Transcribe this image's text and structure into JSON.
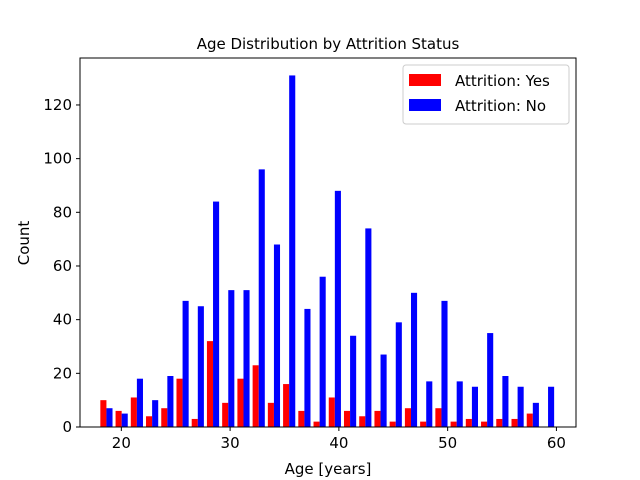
{
  "chart_data": {
    "type": "bar",
    "title": "Age Distribution by Attrition Status",
    "xlabel": "Age [years]",
    "ylabel": "Count",
    "xlim": [
      16.2,
      61.8
    ],
    "ylim": [
      0,
      137.5
    ],
    "x_ticks": [
      20,
      30,
      40,
      50,
      60
    ],
    "y_ticks": [
      0,
      20,
      40,
      60,
      80,
      100,
      120
    ],
    "legend_position": "top-right",
    "grid": false,
    "bin_width": 1.4,
    "series": [
      {
        "name": "Attrition: Yes",
        "color": "#ff0000",
        "x": [
          18.35,
          19.75,
          21.15,
          22.55,
          23.95,
          25.35,
          26.75,
          28.15,
          29.55,
          30.95,
          32.35,
          33.75,
          35.15,
          36.55,
          37.95,
          39.35,
          40.75,
          42.15,
          43.55,
          44.95,
          46.35,
          47.75,
          49.15,
          50.55,
          51.95,
          53.35,
          54.75,
          56.15,
          57.55
        ],
        "values": [
          10,
          6,
          11,
          4,
          7,
          18,
          3,
          32,
          9,
          18,
          23,
          9,
          16,
          6,
          2,
          11,
          6,
          4,
          6,
          2,
          7,
          2,
          7,
          2,
          3,
          2,
          3,
          3,
          5
        ]
      },
      {
        "name": "Attrition: No",
        "color": "#0000ff",
        "x": [
          18.91,
          20.31,
          21.71,
          23.11,
          24.51,
          25.91,
          27.31,
          28.71,
          30.11,
          31.51,
          32.91,
          34.31,
          35.71,
          37.11,
          38.51,
          39.91,
          41.31,
          42.71,
          44.11,
          45.51,
          46.91,
          48.31,
          49.71,
          51.11,
          52.51,
          53.91,
          55.31,
          56.71,
          58.11,
          59.51
        ],
        "values": [
          7,
          5,
          18,
          10,
          19,
          47,
          45,
          84,
          51,
          51,
          96,
          68,
          131,
          44,
          56,
          88,
          34,
          74,
          27,
          39,
          50,
          17,
          47,
          17,
          15,
          35,
          19,
          15,
          9,
          15
        ]
      }
    ]
  }
}
